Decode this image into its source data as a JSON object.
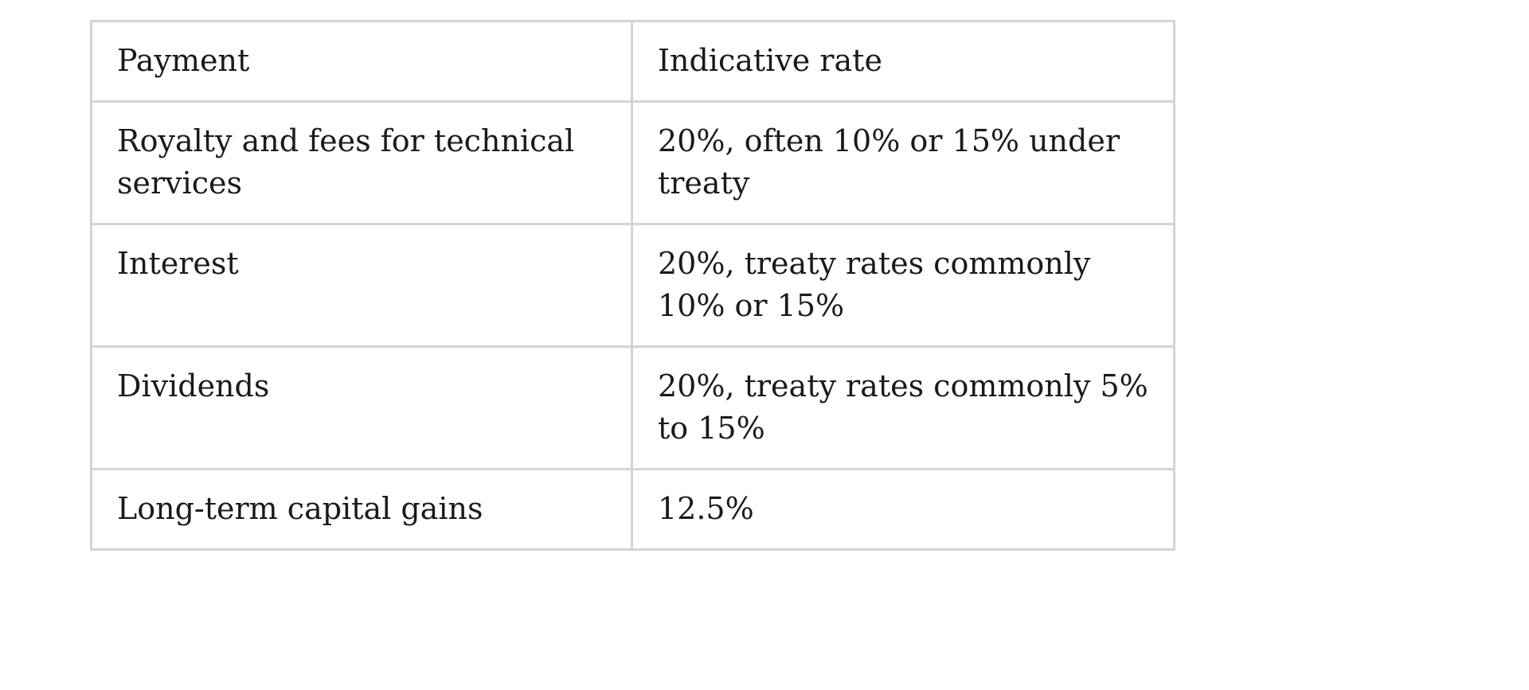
{
  "table": {
    "headers": [
      "Payment",
      "Indicative rate"
    ],
    "rows": [
      [
        "Royalty and fees for technical services",
        "20%, often 10% or 15% under treaty"
      ],
      [
        "Interest",
        "20%, treaty rates commonly 10% or 15%"
      ],
      [
        "Dividends",
        "20%, treaty rates commonly 5% to 15%"
      ],
      [
        "Long-term capital gains",
        "12.5%"
      ]
    ]
  }
}
